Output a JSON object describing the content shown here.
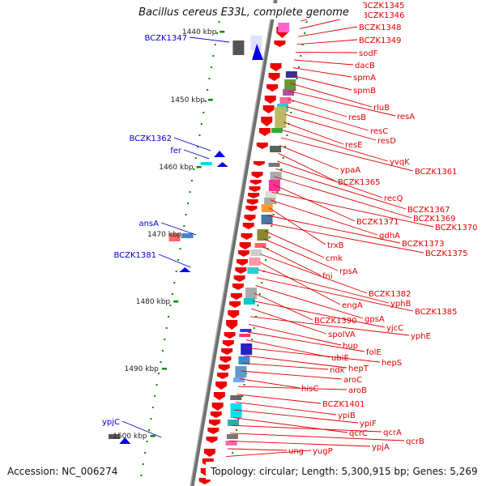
{
  "title": "Bacillus cereus E33L, complete genome",
  "footer": {
    "accession": "Accession: NC_006274",
    "topology": "Topology: circular; Length: 5,300,915 bp; Genes: 5,269"
  },
  "colors": {
    "forward_arrow": "#0000ee",
    "reverse_arrow": "#ee0000",
    "left_label": "#0000c8",
    "right_label": "#e00000",
    "tick": "#008800",
    "backbone": "#888888"
  },
  "kbp_labels": [
    "1440 kbp",
    "1450 kbp",
    "1460 kbp",
    "1470 kbp",
    "1480 kbp",
    "1490 kbp",
    "1500 kbp"
  ],
  "left_genes": [
    "BCZK1347",
    "BCZK1362",
    "fer",
    "ansA",
    "BCZK1381",
    "ypjC"
  ],
  "right_genes": [
    "BCZK1345",
    "BCZK1346",
    "BCZK1348",
    "BCZK1349",
    "sodF",
    "dacB",
    "spmA",
    "spmB",
    "rluB",
    "resA",
    "resB",
    "resC",
    "resD",
    "resE",
    "yvqK",
    "BCZK1361",
    "ypaA",
    "BCZK1365",
    "recQ",
    "BCZK1367",
    "BCZK1369",
    "BCZK1371",
    "BCZK1370",
    "gdhA",
    "trxB",
    "BCZK1373",
    "BCZK1375",
    "cmk",
    "rpsA",
    "fni",
    "BCZK1382",
    "engA",
    "yphB",
    "BCZK1385",
    "gpsA",
    "BCZK1390",
    "yjcC",
    "spoIVA",
    "yphE",
    "hup",
    "folE",
    "ubiE",
    "hepS",
    "hepT",
    "ndk",
    "aroC",
    "hisC",
    "aroB",
    "BCZK1401",
    "ypiB",
    "ypiF",
    "qcrC",
    "qcrA",
    "qcrB",
    "ypjA",
    "ung",
    "yugP"
  ]
}
